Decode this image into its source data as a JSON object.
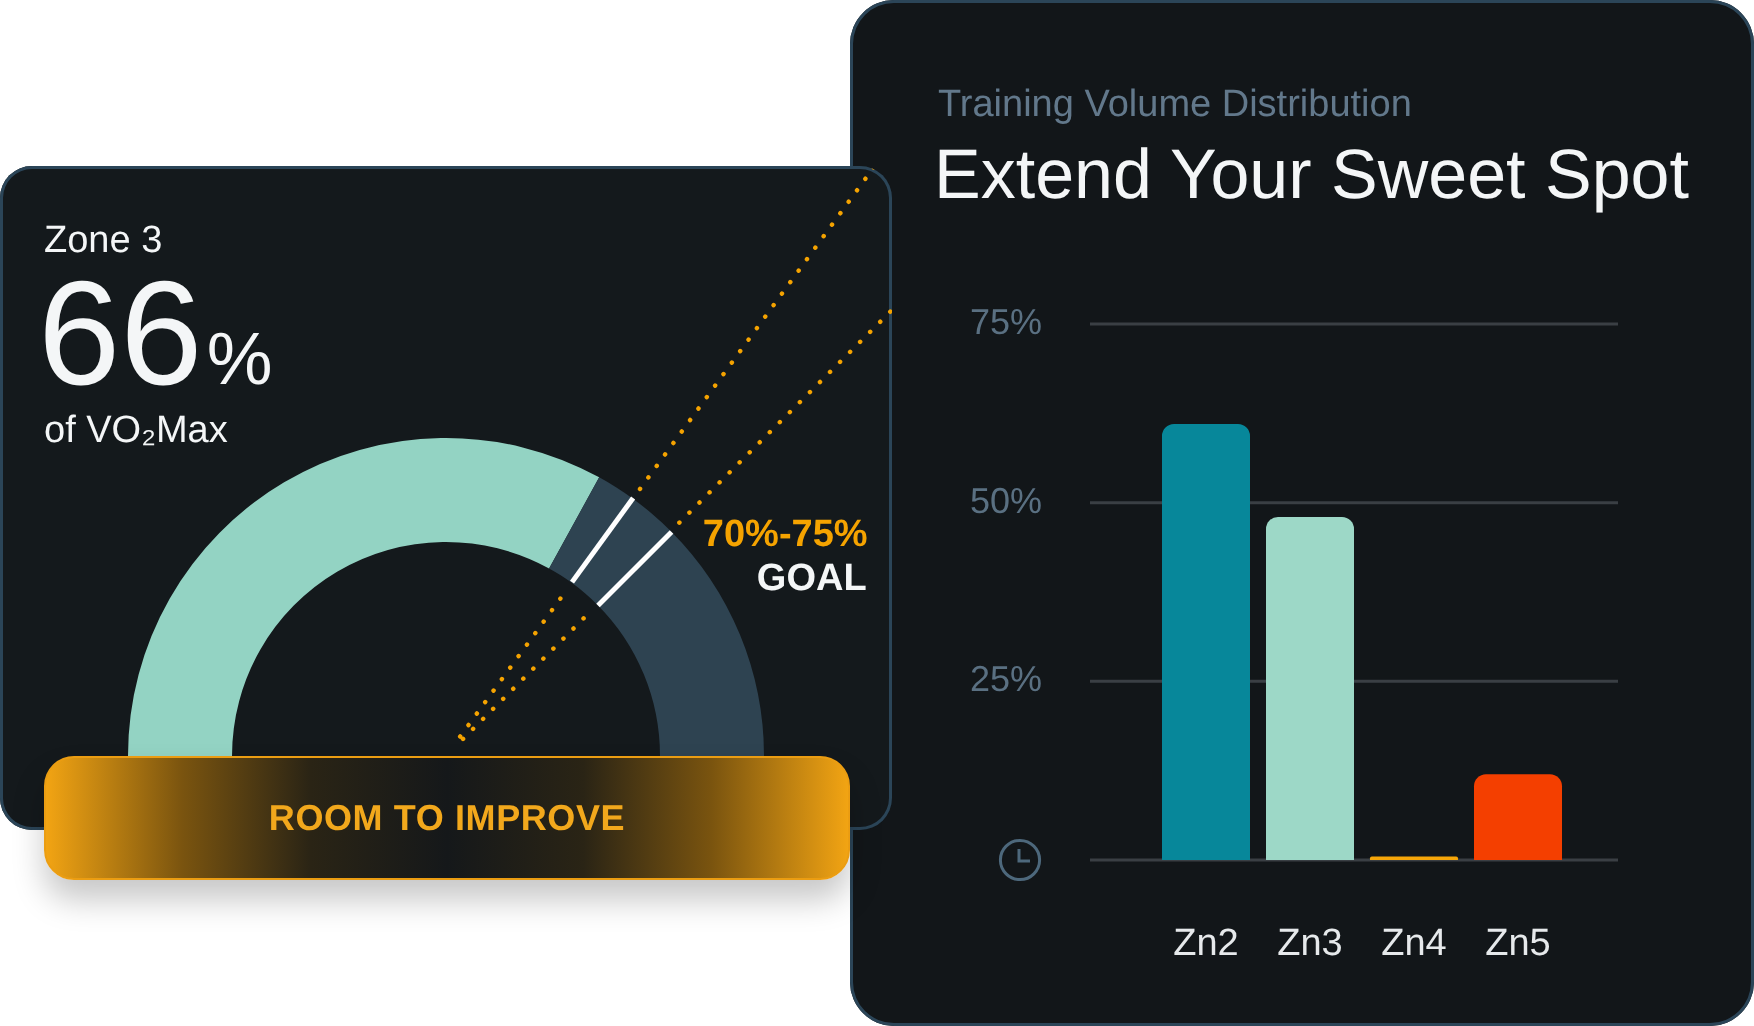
{
  "chart_data": [
    {
      "type": "donut",
      "title": "Zone 3",
      "categories": [
        null,
        null,
        "70%-75%",
        null
      ],
      "values": [
        66,
        4,
        5,
        25
      ],
      "colors": [
        "#93d3c3",
        "#2e4351",
        "#2e4351",
        "#2e4351"
      ],
      "annotations": [
        "66%",
        "of VO₂Max",
        "GOAL",
        "ROOM TO IMPROVE"
      ]
    },
    {
      "type": "bar",
      "title": "Extend Your Sweet Spot",
      "subtitle": "Training Volume Distribution",
      "categories": [
        "Zn2",
        "Zn3",
        "Zn4",
        "Zn5"
      ],
      "values": [
        61,
        48,
        0.5,
        12
      ],
      "colors": [
        "#07879a",
        "#9dd8c7",
        "#f6a609",
        "#f43f00"
      ],
      "ylim": [
        0,
        75
      ],
      "yticks": [
        {
          "value": 0,
          "label": null
        },
        {
          "value": 25,
          "label": "25%"
        },
        {
          "value": 50,
          "label": "50%"
        },
        {
          "value": 75,
          "label": "75%"
        }
      ],
      "grid": "y"
    }
  ]
}
